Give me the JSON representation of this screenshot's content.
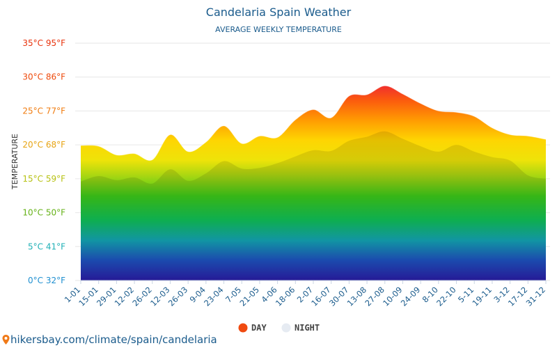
{
  "chart_data": {
    "type": "area",
    "title": "Candelaria Spain Weather",
    "subtitle": "AVERAGE WEEKLY TEMPERATURE",
    "ylabel": "TEMPERATURE",
    "ylim": [
      0,
      35
    ],
    "yticks": [
      {
        "value": 35,
        "label": "35°C 95°F",
        "color": "#e8320c"
      },
      {
        "value": 30,
        "label": "30°C 86°F",
        "color": "#ee4a0c"
      },
      {
        "value": 25,
        "label": "25°C 77°F",
        "color": "#f07c10"
      },
      {
        "value": 20,
        "label": "20°C 68°F",
        "color": "#e7a413"
      },
      {
        "value": 15,
        "label": "15°C 59°F",
        "color": "#b7c214"
      },
      {
        "value": 10,
        "label": "10°C 50°F",
        "color": "#66b218"
      },
      {
        "value": 5,
        "label": "5°C 41°F",
        "color": "#1fb0b6"
      },
      {
        "value": 0,
        "label": "0°C 32°F",
        "color": "#1f8fd0"
      }
    ],
    "categories": [
      "1-01",
      "15-01",
      "29-01",
      "12-02",
      "26-02",
      "12-03",
      "26-03",
      "9-04",
      "23-04",
      "7-05",
      "21-05",
      "4-06",
      "18-06",
      "2-07",
      "16-07",
      "30-07",
      "13-08",
      "27-08",
      "10-09",
      "24-09",
      "8-10",
      "22-10",
      "5-11",
      "19-11",
      "3-12",
      "17-12",
      "31-12"
    ],
    "series": [
      {
        "name": "DAY",
        "color": "#f04a10",
        "values": [
          19.9,
          19.8,
          18.5,
          18.7,
          17.8,
          21.5,
          19.0,
          20.4,
          22.8,
          20.2,
          21.3,
          21.1,
          23.7,
          25.2,
          24.0,
          27.2,
          27.4,
          28.7,
          27.5,
          26.1,
          25.0,
          24.8,
          24.2,
          22.5,
          21.5,
          21.3,
          20.8
        ]
      },
      {
        "name": "NIGHT",
        "color": "#e6ebf2",
        "values": [
          14.6,
          15.4,
          14.8,
          15.2,
          14.3,
          16.4,
          14.7,
          15.8,
          17.6,
          16.5,
          16.6,
          17.3,
          18.3,
          19.2,
          19.1,
          20.6,
          21.2,
          22.0,
          20.9,
          19.8,
          19.0,
          20.0,
          19.0,
          18.2,
          17.7,
          15.5,
          15.0
        ]
      }
    ],
    "legend": "bottom-center"
  },
  "footer": {
    "site": "hikersbay.com/climate/spain/candelaria"
  }
}
